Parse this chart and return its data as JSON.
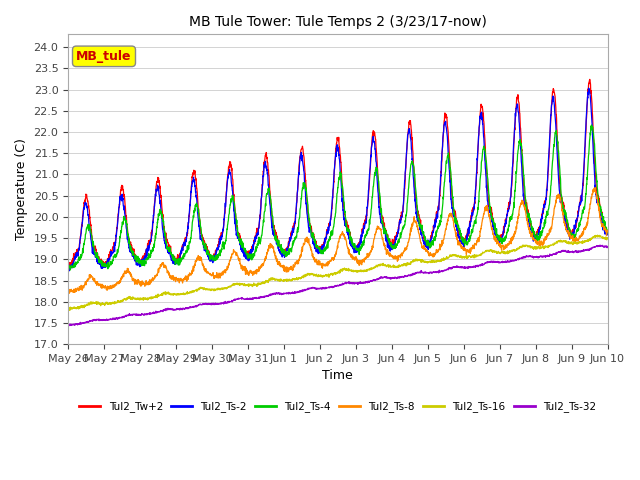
{
  "title": "MB Tule Tower: Tule Temps 2 (3/23/17-now)",
  "xlabel": "Time",
  "ylabel": "Temperature (C)",
  "ylim": [
    17.0,
    24.3
  ],
  "yticks": [
    17.0,
    17.5,
    18.0,
    18.5,
    19.0,
    19.5,
    20.0,
    20.5,
    21.0,
    21.5,
    22.0,
    22.5,
    23.0,
    23.5,
    24.0
  ],
  "xtick_labels": [
    "May 26",
    "May 27",
    "May 28",
    "May 29",
    "May 30",
    "May 31",
    "Jun 1",
    "Jun 2",
    "Jun 3",
    "Jun 4",
    "Jun 5",
    "Jun 6",
    "Jun 7",
    "Jun 8",
    "Jun 9",
    "Jun 10"
  ],
  "series_colors": [
    "#ff0000",
    "#0000ff",
    "#00cc00",
    "#ff8800",
    "#cccc00",
    "#9900cc"
  ],
  "series_labels": [
    "Tul2_Tw+2",
    "Tul2_Ts-2",
    "Tul2_Ts-4",
    "Tul2_Ts-8",
    "Tul2_Ts-16",
    "Tul2_Ts-32"
  ],
  "legend_box_label": "MB_tule",
  "legend_box_color": "#ffff00",
  "legend_box_text_color": "#cc0000",
  "background_color": "#ffffff",
  "grid_color": "#cccccc",
  "n_days": 15,
  "samples_per_day": 144
}
